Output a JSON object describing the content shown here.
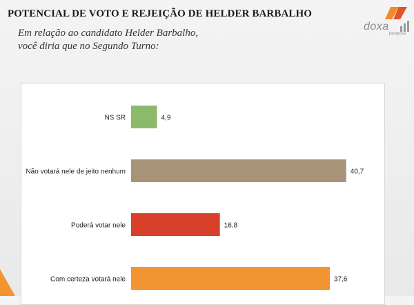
{
  "header": {
    "title": "POTENCIAL DE VOTO E REJEIÇÃO DE HELDER BARBALHO",
    "subtitle_line1": "Em relação ao candidato Helder Barbalho,",
    "subtitle_line2": "você diria que no Segundo Turno:"
  },
  "logo": {
    "name": "doxa",
    "tagline": "pesquisa"
  },
  "chart_data": {
    "type": "bar",
    "orientation": "horizontal",
    "categories": [
      "NS SR",
      "Não votará nele de jeito nenhum",
      "Poderá votar nele",
      "Com certeza votará nele"
    ],
    "values": [
      4.9,
      40.7,
      16.8,
      37.6
    ],
    "value_labels": [
      "4,9",
      "40,7",
      "16,8",
      "37,6"
    ],
    "colors": [
      "#8cba6a",
      "#a79478",
      "#d9402c",
      "#f39433"
    ],
    "xlim": [
      0,
      44
    ],
    "grid": false,
    "legend": "none"
  }
}
